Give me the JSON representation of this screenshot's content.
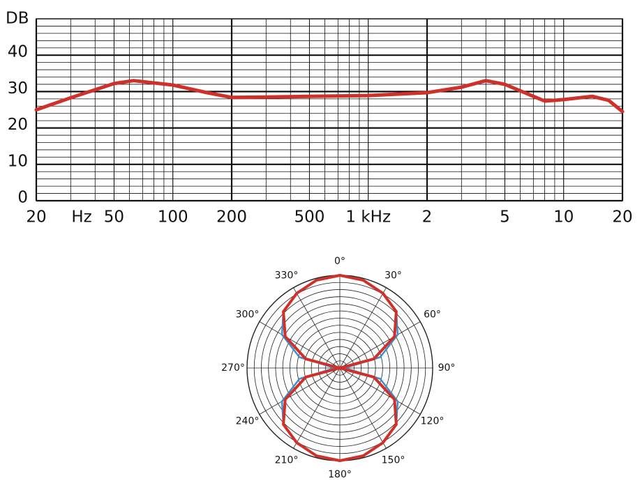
{
  "chart_data": [
    {
      "type": "line",
      "y_label": "DB",
      "x_unit_label": "Hz",
      "xscale": "log",
      "x": [
        20,
        30,
        50,
        63,
        100,
        150,
        200,
        300,
        500,
        1000,
        2000,
        3000,
        4000,
        5000,
        7000,
        8000,
        10000,
        14000,
        17000,
        20000
      ],
      "series": [
        {
          "color": "#d0302a",
          "values": [
            25,
            28.3,
            32.2,
            33,
            31.8,
            29.7,
            28.4,
            28.5,
            28.7,
            28.9,
            29.7,
            31.2,
            33,
            32,
            28.7,
            27.4,
            27.8,
            28.7,
            27.6,
            24.5
          ]
        }
      ],
      "xlim": [
        20,
        20000
      ],
      "xticks": [
        20,
        50,
        100,
        200,
        500,
        {
          "value": 1000,
          "label": "1 kHz"
        },
        {
          "value": 2000,
          "label": "2"
        },
        {
          "value": 5000,
          "label": "5"
        },
        {
          "value": 10000,
          "label": "10"
        },
        {
          "value": 20000,
          "label": "20"
        }
      ],
      "ylim": [
        0,
        50
      ],
      "yticks": [
        0,
        10,
        20,
        30,
        40
      ],
      "grid": true
    },
    {
      "type": "polar",
      "theta": [
        0,
        15,
        30,
        45,
        60,
        75,
        90,
        105,
        120,
        135,
        150,
        165,
        180,
        195,
        210,
        225,
        240,
        255,
        270,
        285,
        300,
        315,
        330,
        345
      ],
      "series": [
        {
          "color": "#3a8fd0",
          "values": [
            1,
            0.98,
            0.93,
            0.86,
            0.72,
            0.45,
            0.05,
            0.45,
            0.72,
            0.86,
            0.93,
            0.98,
            1,
            0.98,
            0.93,
            0.86,
            0.72,
            0.45,
            0.05,
            0.45,
            0.72,
            0.86,
            0.93,
            0.98
          ]
        },
        {
          "color": "#d0302a",
          "values": [
            1,
            0.98,
            0.93,
            0.86,
            0.68,
            0.38,
            0,
            0.38,
            0.68,
            0.86,
            0.93,
            0.98,
            1,
            0.98,
            0.93,
            0.86,
            0.68,
            0.38,
            0,
            0.38,
            0.68,
            0.86,
            0.93,
            0.98
          ]
        }
      ],
      "rlim": [
        0,
        1
      ],
      "thetaticks": [
        {
          "value": 0,
          "label": "0°"
        },
        {
          "value": 30,
          "label": "30°"
        },
        {
          "value": 60,
          "label": "60°"
        },
        {
          "value": 90,
          "label": "90°"
        },
        {
          "value": 120,
          "label": "120°"
        },
        {
          "value": 150,
          "label": "150°"
        },
        {
          "value": 180,
          "label": "180°"
        },
        {
          "value": 210,
          "label": "210°"
        },
        {
          "value": 240,
          "label": "240°"
        },
        {
          "value": 270,
          "label": "270°"
        },
        {
          "value": 300,
          "label": "300°"
        },
        {
          "value": 330,
          "label": "330°"
        }
      ]
    }
  ]
}
